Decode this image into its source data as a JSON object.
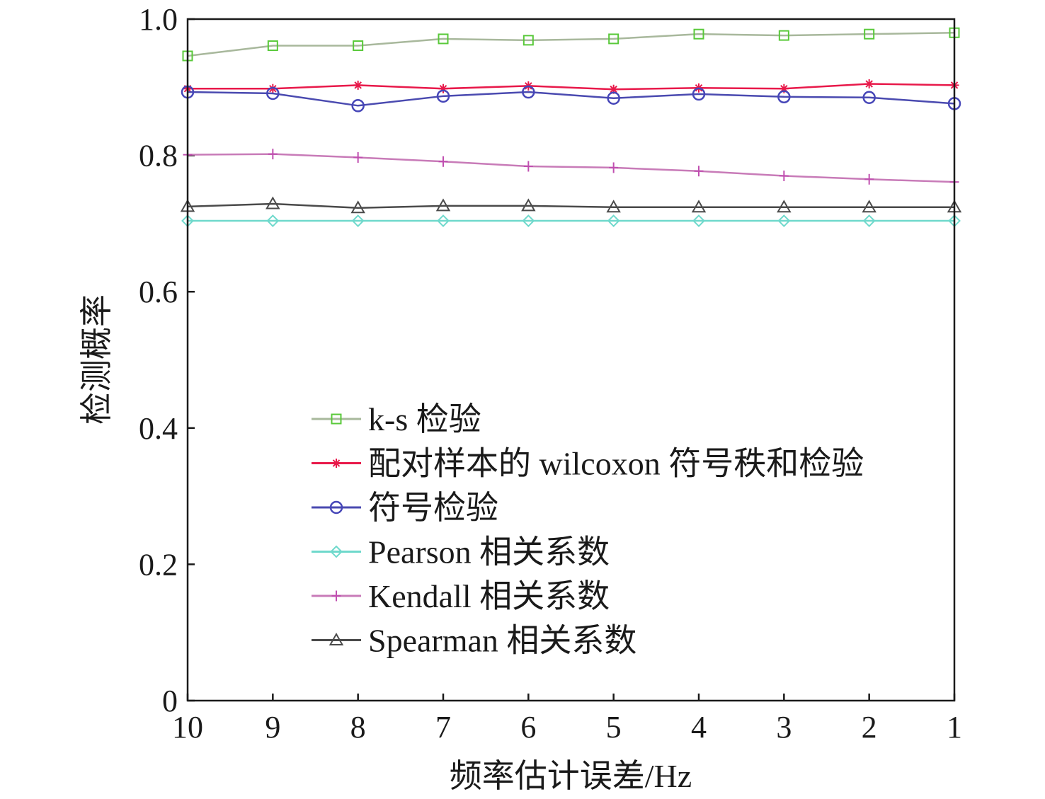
{
  "chart_data": {
    "type": "line",
    "title": "",
    "xlabel": "频率估计误差/Hz",
    "ylabel": "检测概率",
    "x": [
      10,
      9,
      8,
      7,
      6,
      5,
      4,
      3,
      2,
      1
    ],
    "x_reversed": true,
    "xlim": [
      10,
      1
    ],
    "ylim": [
      0,
      1.0
    ],
    "x_ticks": [
      "10",
      "9",
      "8",
      "7",
      "6",
      "5",
      "4",
      "3",
      "2",
      "1"
    ],
    "y_ticks": [
      "0",
      "0.2",
      "0.4",
      "0.6",
      "0.8",
      "1.0"
    ],
    "y_tick_values": [
      0,
      0.2,
      0.4,
      0.6,
      0.8,
      1.0
    ],
    "grid": false,
    "legend_position": "lower-center",
    "series": [
      {
        "name": "k-s 检验",
        "marker": "square",
        "color": "#59c93a",
        "line_color": "#a8b89c",
        "values": [
          0.946,
          0.961,
          0.961,
          0.971,
          0.969,
          0.971,
          0.978,
          0.976,
          0.978,
          0.98
        ]
      },
      {
        "name": "配对样本的 wilcoxon 符号秩和检验",
        "marker": "star",
        "color": "#e8194a",
        "line_color": "#e8194a",
        "values": [
          0.898,
          0.898,
          0.903,
          0.898,
          0.902,
          0.897,
          0.899,
          0.898,
          0.905,
          0.903
        ]
      },
      {
        "name": "符号检验",
        "marker": "circle",
        "color": "#4646b8",
        "line_color": "#4a4ab0",
        "values": [
          0.893,
          0.891,
          0.873,
          0.887,
          0.893,
          0.884,
          0.89,
          0.886,
          0.885,
          0.876
        ]
      },
      {
        "name": "Pearson 相关系数",
        "marker": "diamond",
        "color": "#6fd9cc",
        "line_color": "#6fd9cc",
        "values": [
          0.704,
          0.704,
          0.704,
          0.704,
          0.704,
          0.704,
          0.704,
          0.704,
          0.704,
          0.704
        ]
      },
      {
        "name": "Kendall 相关系数",
        "marker": "plus",
        "color": "#c04fb0",
        "line_color": "#c87bb8",
        "values": [
          0.801,
          0.802,
          0.797,
          0.791,
          0.784,
          0.782,
          0.777,
          0.77,
          0.765,
          0.761
        ]
      },
      {
        "name": "Spearman 相关系数",
        "marker": "triangle",
        "color": "#4a4a4a",
        "line_color": "#4a4a4a",
        "values": [
          0.725,
          0.729,
          0.723,
          0.726,
          0.726,
          0.724,
          0.724,
          0.724,
          0.724,
          0.724
        ]
      }
    ]
  }
}
